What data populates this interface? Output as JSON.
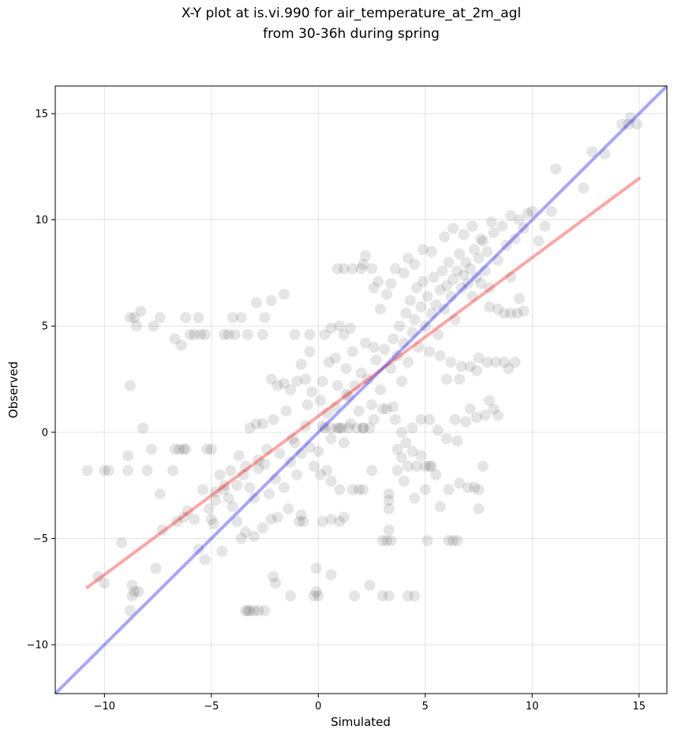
{
  "chart_data": {
    "type": "scatter",
    "title": [
      "X-Y plot at is.vi.990 for air_temperature_at_2m_agl",
      "from 30-36h during spring"
    ],
    "xlabel": "Simulated",
    "ylabel": "Observed",
    "xlim": [
      -12.3,
      16.3
    ],
    "ylim": [
      -12.3,
      16.3
    ],
    "xticks": [
      -10,
      -5,
      0,
      5,
      10,
      15
    ],
    "yticks": [
      -10,
      -5,
      0,
      5,
      10,
      15
    ],
    "xtick_labels": [
      "−10",
      "−5",
      "0",
      "5",
      "10",
      "15"
    ],
    "ytick_labels": [
      "−10",
      "−5",
      "0",
      "5",
      "10",
      "15"
    ],
    "grid": true,
    "point_color": "#000000",
    "point_alpha": 0.1,
    "fit_line": {
      "color": "#ff0000",
      "alpha": 0.35,
      "x": [
        -10.8,
        15.0
      ],
      "y": [
        -7.3,
        11.95
      ]
    },
    "identity_line": {
      "color": "#0000ff",
      "alpha": 0.35,
      "x": [
        -12.3,
        16.3
      ],
      "y": [
        -12.3,
        16.3
      ]
    },
    "points": [
      [
        -10.8,
        -1.8
      ],
      [
        -10.0,
        -1.8
      ],
      [
        -9.8,
        -1.8
      ],
      [
        -10.3,
        -6.8
      ],
      [
        -10.0,
        -7.1
      ],
      [
        -9.2,
        -5.2
      ],
      [
        -8.9,
        -1.1
      ],
      [
        -8.9,
        -1.8
      ],
      [
        -8.8,
        2.2
      ],
      [
        -8.8,
        5.4
      ],
      [
        -8.6,
        5.4
      ],
      [
        -8.5,
        5.0
      ],
      [
        -8.3,
        5.7
      ],
      [
        -8.2,
        0.2
      ],
      [
        -8.0,
        -1.8
      ],
      [
        -7.8,
        -0.8
      ],
      [
        -7.7,
        5.0
      ],
      [
        -7.4,
        5.4
      ],
      [
        -7.4,
        -2.9
      ],
      [
        -7.3,
        -4.6
      ],
      [
        -7.6,
        -6.4
      ],
      [
        -8.6,
        -7.5
      ],
      [
        -8.4,
        -7.5
      ],
      [
        -8.7,
        -7.2
      ],
      [
        -8.8,
        -8.4
      ],
      [
        -8.7,
        -7.7
      ],
      [
        -6.7,
        4.4
      ],
      [
        -6.7,
        -0.8
      ],
      [
        -6.5,
        -0.8
      ],
      [
        -6.3,
        -0.8
      ],
      [
        -6.2,
        -0.8
      ],
      [
        -6.4,
        4.1
      ],
      [
        -6.2,
        5.4
      ],
      [
        -6.0,
        4.6
      ],
      [
        -5.8,
        4.6
      ],
      [
        -5.6,
        5.4
      ],
      [
        -5.5,
        4.6
      ],
      [
        -5.3,
        4.6
      ],
      [
        -5.2,
        -0.8
      ],
      [
        -5.0,
        -0.8
      ],
      [
        -6.8,
        -1.8
      ],
      [
        -6.6,
        -4.2
      ],
      [
        -6.3,
        -4.0
      ],
      [
        -6.1,
        -3.7
      ],
      [
        -5.8,
        -4.1
      ],
      [
        -5.6,
        -5.5
      ],
      [
        -5.3,
        -6.0
      ],
      [
        -5.0,
        -4.1
      ],
      [
        -4.9,
        -4.3
      ],
      [
        -4.8,
        -2.8
      ],
      [
        -4.6,
        -2.0
      ],
      [
        -4.5,
        -5.6
      ],
      [
        -4.4,
        4.6
      ],
      [
        -4.2,
        4.6
      ],
      [
        -4.0,
        5.4
      ],
      [
        -3.9,
        4.6
      ],
      [
        -3.6,
        5.4
      ],
      [
        -3.3,
        4.6
      ],
      [
        -2.6,
        4.6
      ],
      [
        -2.2,
        6.2
      ],
      [
        -2.5,
        5.4
      ],
      [
        -1.6,
        6.5
      ],
      [
        -2.9,
        6.1
      ],
      [
        -1.1,
        4.6
      ],
      [
        -0.4,
        4.6
      ],
      [
        -2.2,
        2.5
      ],
      [
        -2.1,
        -6.8
      ],
      [
        -2.0,
        -7.1
      ],
      [
        -1.3,
        -7.7
      ],
      [
        -0.2,
        -7.7
      ],
      [
        -0.1,
        -7.5
      ],
      [
        0.0,
        -7.7
      ],
      [
        -0.1,
        -6.4
      ],
      [
        0.6,
        -6.7
      ],
      [
        1.7,
        -7.7
      ],
      [
        2.4,
        -7.2
      ],
      [
        3.0,
        -7.7
      ],
      [
        3.3,
        -7.7
      ],
      [
        4.2,
        -7.7
      ],
      [
        4.5,
        -7.7
      ],
      [
        -3.4,
        -8.4
      ],
      [
        -3.2,
        -8.4
      ],
      [
        -3.0,
        -8.4
      ],
      [
        -2.8,
        -8.4
      ],
      [
        -2.5,
        -8.4
      ],
      [
        -3.3,
        -8.4
      ],
      [
        3.2,
        -5.1
      ],
      [
        3.4,
        -5.1
      ],
      [
        3.0,
        -5.1
      ],
      [
        3.3,
        -4.6
      ],
      [
        5.1,
        -5.1
      ],
      [
        6.1,
        -5.1
      ],
      [
        6.5,
        -5.1
      ],
      [
        6.3,
        -5.1
      ],
      [
        3.3,
        -3.6
      ],
      [
        3.3,
        -3.2
      ],
      [
        3.3,
        -2.9
      ],
      [
        4.0,
        -2.3
      ],
      [
        4.5,
        -3.1
      ],
      [
        5.0,
        -2.7
      ],
      [
        5.7,
        -3.5
      ],
      [
        6.1,
        -2.7
      ],
      [
        6.6,
        -2.4
      ],
      [
        7.0,
        -2.6
      ],
      [
        7.5,
        -2.7
      ],
      [
        7.3,
        -2.6
      ],
      [
        7.5,
        -3.6
      ],
      [
        7.7,
        -1.6
      ],
      [
        5.5,
        -2.0
      ],
      [
        4.6,
        -1.6
      ],
      [
        4.2,
        -1.6
      ],
      [
        3.9,
        -1.2
      ],
      [
        5.0,
        -1.6
      ],
      [
        5.2,
        -1.6
      ],
      [
        3.7,
        -1.8
      ],
      [
        2.5,
        -1.8
      ],
      [
        1.6,
        -2.7
      ],
      [
        1.9,
        -2.7
      ],
      [
        2.1,
        -2.7
      ],
      [
        1.0,
        -2.7
      ],
      [
        0.6,
        -2.3
      ],
      [
        0.4,
        -1.8
      ],
      [
        0.1,
        -2.0
      ],
      [
        0.2,
        -4.2
      ],
      [
        0.6,
        -4.1
      ],
      [
        1.0,
        -4.2
      ],
      [
        1.2,
        -4.0
      ],
      [
        -0.7,
        -4.2
      ],
      [
        -0.9,
        -4.2
      ],
      [
        -0.8,
        -3.9
      ],
      [
        -1.4,
        -3.6
      ],
      [
        -1.9,
        -4.0
      ],
      [
        -2.2,
        -4.1
      ],
      [
        -2.6,
        -4.5
      ],
      [
        -3.0,
        -4.9
      ],
      [
        -3.4,
        -4.7
      ],
      [
        -3.6,
        -5.0
      ],
      [
        -3.8,
        -4.2
      ],
      [
        -4.0,
        -3.5
      ],
      [
        -4.2,
        -3.1
      ],
      [
        -4.4,
        -2.7
      ],
      [
        -3.8,
        -2.5
      ],
      [
        -3.5,
        -2.0
      ],
      [
        -3.2,
        -2.6
      ],
      [
        -3.0,
        -3.1
      ],
      [
        -2.8,
        -1.7
      ],
      [
        -2.5,
        -1.5
      ],
      [
        -2.3,
        -2.9
      ],
      [
        -2.0,
        -2.2
      ],
      [
        -1.8,
        -1.0
      ],
      [
        -1.6,
        -2.6
      ],
      [
        -1.3,
        -1.4
      ],
      [
        -1.1,
        -0.5
      ],
      [
        -1.0,
        -2.0
      ],
      [
        -0.8,
        -1.0
      ],
      [
        -0.6,
        0.3
      ],
      [
        -0.4,
        -0.7
      ],
      [
        -0.2,
        -1.6
      ],
      [
        0.0,
        -0.9
      ],
      [
        0.2,
        0.3
      ],
      [
        0.4,
        0.9
      ],
      [
        0.6,
        -0.3
      ],
      [
        0.8,
        1.2
      ],
      [
        1.0,
        0.2
      ],
      [
        1.2,
        -0.5
      ],
      [
        1.3,
        1.8
      ],
      [
        1.5,
        0.4
      ],
      [
        1.7,
        2.2
      ],
      [
        1.9,
        1.0
      ],
      [
        2.1,
        0.2
      ],
      [
        2.3,
        2.5
      ],
      [
        2.5,
        1.3
      ],
      [
        2.7,
        3.4
      ],
      [
        2.9,
        2.0
      ],
      [
        3.1,
        3.9
      ],
      [
        3.2,
        1.1
      ],
      [
        3.4,
        3.0
      ],
      [
        3.5,
        4.4
      ],
      [
        3.7,
        3.6
      ],
      [
        3.8,
        5.0
      ],
      [
        3.9,
        2.4
      ],
      [
        4.0,
        4.2
      ],
      [
        4.1,
        5.6
      ],
      [
        4.2,
        3.3
      ],
      [
        4.3,
        6.2
      ],
      [
        4.4,
        4.7
      ],
      [
        4.5,
        5.3
      ],
      [
        4.6,
        6.8
      ],
      [
        4.7,
        4.0
      ],
      [
        4.8,
        5.9
      ],
      [
        4.9,
        7.1
      ],
      [
        5.0,
        5.0
      ],
      [
        5.1,
        6.4
      ],
      [
        5.2,
        3.8
      ],
      [
        5.3,
        5.6
      ],
      [
        5.4,
        7.3
      ],
      [
        5.5,
        6.0
      ],
      [
        5.6,
        4.6
      ],
      [
        5.7,
        6.7
      ],
      [
        5.8,
        7.6
      ],
      [
        5.9,
        5.8
      ],
      [
        6.0,
        6.9
      ],
      [
        6.1,
        8.0
      ],
      [
        6.2,
        6.4
      ],
      [
        6.3,
        7.2
      ],
      [
        6.4,
        5.3
      ],
      [
        6.5,
        7.6
      ],
      [
        6.6,
        8.4
      ],
      [
        6.7,
        6.8
      ],
      [
        6.8,
        7.4
      ],
      [
        6.9,
        8.0
      ],
      [
        7.0,
        7.0
      ],
      [
        7.1,
        7.7
      ],
      [
        7.2,
        6.4
      ],
      [
        7.3,
        8.6
      ],
      [
        7.4,
        7.3
      ],
      [
        7.5,
        8.2
      ],
      [
        7.6,
        7.0
      ],
      [
        7.7,
        9.0
      ],
      [
        7.8,
        7.6
      ],
      [
        7.9,
        8.5
      ],
      [
        8.0,
        6.8
      ],
      [
        8.2,
        9.4
      ],
      [
        8.4,
        8.1
      ],
      [
        8.6,
        9.7
      ],
      [
        8.8,
        8.8
      ],
      [
        9.0,
        10.2
      ],
      [
        9.2,
        9.1
      ],
      [
        9.4,
        10.0
      ],
      [
        9.6,
        9.6
      ],
      [
        9.8,
        10.3
      ],
      [
        10.0,
        10.4
      ],
      [
        10.3,
        9.0
      ],
      [
        10.6,
        9.7
      ],
      [
        10.9,
        10.4
      ],
      [
        11.1,
        12.4
      ],
      [
        12.4,
        11.5
      ],
      [
        12.8,
        13.2
      ],
      [
        13.4,
        13.1
      ],
      [
        14.2,
        14.5
      ],
      [
        14.5,
        14.5
      ],
      [
        14.6,
        14.8
      ],
      [
        14.9,
        14.5
      ],
      [
        8.7,
        5.6
      ],
      [
        9.0,
        5.6
      ],
      [
        9.3,
        5.6
      ],
      [
        9.6,
        5.7
      ],
      [
        8.4,
        5.8
      ],
      [
        9.0,
        7.3
      ],
      [
        9.4,
        6.3
      ],
      [
        8.0,
        5.9
      ],
      [
        8.9,
        3.0
      ],
      [
        9.2,
        3.3
      ],
      [
        8.7,
        3.3
      ],
      [
        8.3,
        3.3
      ],
      [
        7.9,
        3.3
      ],
      [
        7.5,
        3.5
      ],
      [
        7.1,
        3.1
      ],
      [
        6.7,
        3.1
      ],
      [
        6.2,
        3.3
      ],
      [
        5.7,
        3.6
      ],
      [
        6.0,
        2.5
      ],
      [
        6.6,
        2.5
      ],
      [
        7.4,
        2.9
      ],
      [
        8.0,
        1.5
      ],
      [
        8.2,
        1.1
      ],
      [
        8.4,
        0.8
      ],
      [
        7.8,
        0.8
      ],
      [
        7.4,
        0.7
      ],
      [
        7.1,
        1.1
      ],
      [
        6.9,
        0.5
      ],
      [
        6.4,
        0.6
      ],
      [
        6.0,
        -0.3
      ],
      [
        6.5,
        -0.4
      ],
      [
        5.6,
        0.1
      ],
      [
        5.2,
        0.6
      ],
      [
        4.8,
        0.6
      ],
      [
        4.4,
        0.2
      ],
      [
        3.9,
        0.0
      ],
      [
        3.6,
        0.6
      ],
      [
        3.5,
        1.2
      ],
      [
        3.0,
        1.1
      ],
      [
        2.6,
        0.6
      ],
      [
        2.4,
        0.2
      ],
      [
        2.1,
        0.2
      ],
      [
        1.8,
        0.2
      ],
      [
        1.4,
        0.2
      ],
      [
        1.1,
        0.2
      ],
      [
        0.9,
        0.2
      ],
      [
        0.6,
        0.2
      ],
      [
        0.3,
        0.2
      ],
      [
        3.7,
        -0.8
      ],
      [
        4.1,
        -0.5
      ],
      [
        4.4,
        -0.9
      ],
      [
        4.8,
        -1.1
      ],
      [
        5.3,
        -1.6
      ],
      [
        2.9,
        5.8
      ],
      [
        3.2,
        6.5
      ],
      [
        2.8,
        7.1
      ],
      [
        2.5,
        7.7
      ],
      [
        2.6,
        6.8
      ],
      [
        3.4,
        7.0
      ],
      [
        3.6,
        7.7
      ],
      [
        4.0,
        7.5
      ],
      [
        4.2,
        8.2
      ],
      [
        4.5,
        7.9
      ],
      [
        4.9,
        8.6
      ],
      [
        5.3,
        8.5
      ],
      [
        5.9,
        9.2
      ],
      [
        6.3,
        9.6
      ],
      [
        6.8,
        9.3
      ],
      [
        7.2,
        9.7
      ],
      [
        7.6,
        9.1
      ],
      [
        8.1,
        9.9
      ],
      [
        1.2,
        7.7
      ],
      [
        1.6,
        7.7
      ],
      [
        2.0,
        7.7
      ],
      [
        2.2,
        8.3
      ],
      [
        2.1,
        7.9
      ],
      [
        0.9,
        7.7
      ],
      [
        1.0,
        5.0
      ],
      [
        1.5,
        4.9
      ],
      [
        1.2,
        4.6
      ],
      [
        0.6,
        4.9
      ],
      [
        0.3,
        4.6
      ],
      [
        -0.4,
        3.8
      ],
      [
        -0.6,
        2.5
      ],
      [
        -0.8,
        3.2
      ],
      [
        -1.0,
        2.4
      ],
      [
        -1.3,
        2.0
      ],
      [
        -1.6,
        2.3
      ],
      [
        -1.9,
        2.2
      ],
      [
        -2.1,
        0.6
      ],
      [
        -1.5,
        1.0
      ],
      [
        -1.2,
        -0.3
      ],
      [
        -0.3,
        1.9
      ],
      [
        0.2,
        2.4
      ],
      [
        0.5,
        3.3
      ],
      [
        0.8,
        3.5
      ],
      [
        1.3,
        3.0
      ],
      [
        1.6,
        3.8
      ],
      [
        2.2,
        4.2
      ],
      [
        2.6,
        4.0
      ],
      [
        2.0,
        2.8
      ],
      [
        1.4,
        1.7
      ],
      [
        0.9,
        2.2
      ],
      [
        0.1,
        1.5
      ],
      [
        -0.5,
        1.3
      ],
      [
        -2.6,
        0.4
      ],
      [
        -2.9,
        0.4
      ],
      [
        -3.2,
        0.2
      ],
      [
        -2.4,
        -0.8
      ],
      [
        -2.8,
        -1.3
      ],
      [
        -3.4,
        -1.6
      ],
      [
        -3.7,
        -1.1
      ],
      [
        -4.1,
        -1.8
      ],
      [
        -4.4,
        -2.5
      ],
      [
        -4.8,
        -3.2
      ],
      [
        -5.1,
        -3.6
      ],
      [
        -5.4,
        -2.7
      ]
    ]
  }
}
